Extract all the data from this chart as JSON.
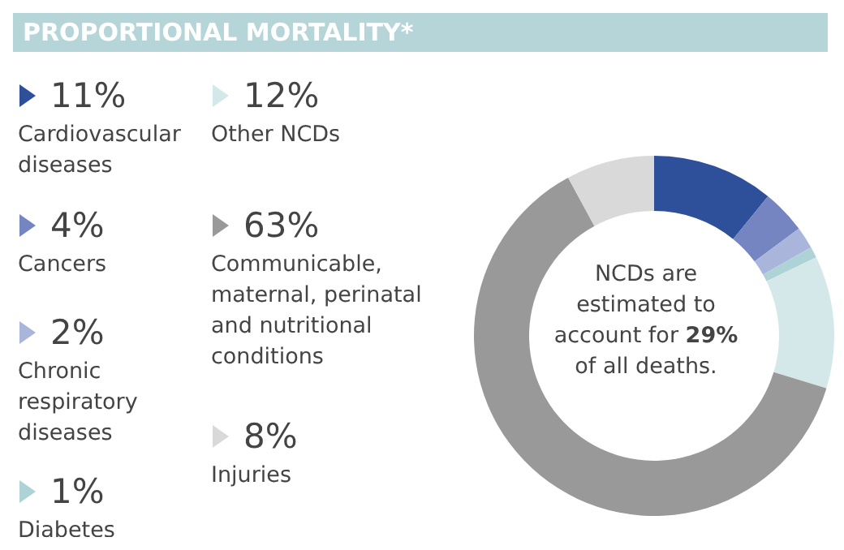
{
  "chart_data": {
    "type": "donut",
    "title": "PROPORTIONAL MORTALITY*",
    "categories": [
      "Cardiovascular diseases",
      "Cancers",
      "Chronic respiratory diseases",
      "Diabetes",
      "Other NCDs",
      "Communicable, maternal, perinatal and nutritional conditions",
      "Injuries"
    ],
    "values": [
      11,
      4,
      2,
      1,
      12,
      63,
      8
    ],
    "value_labels": [
      "11%",
      "4%",
      "2%",
      "1%",
      "12%",
      "63%",
      "8%"
    ],
    "colors": [
      "#2e4f9a",
      "#7485c2",
      "#a9b5db",
      "#aed3d6",
      "#d4e8ea",
      "#999999",
      "#d9d9d9"
    ],
    "legend": "left",
    "annotations": [
      "NCDs are estimated to account for 29% of all deaths."
    ]
  }
}
